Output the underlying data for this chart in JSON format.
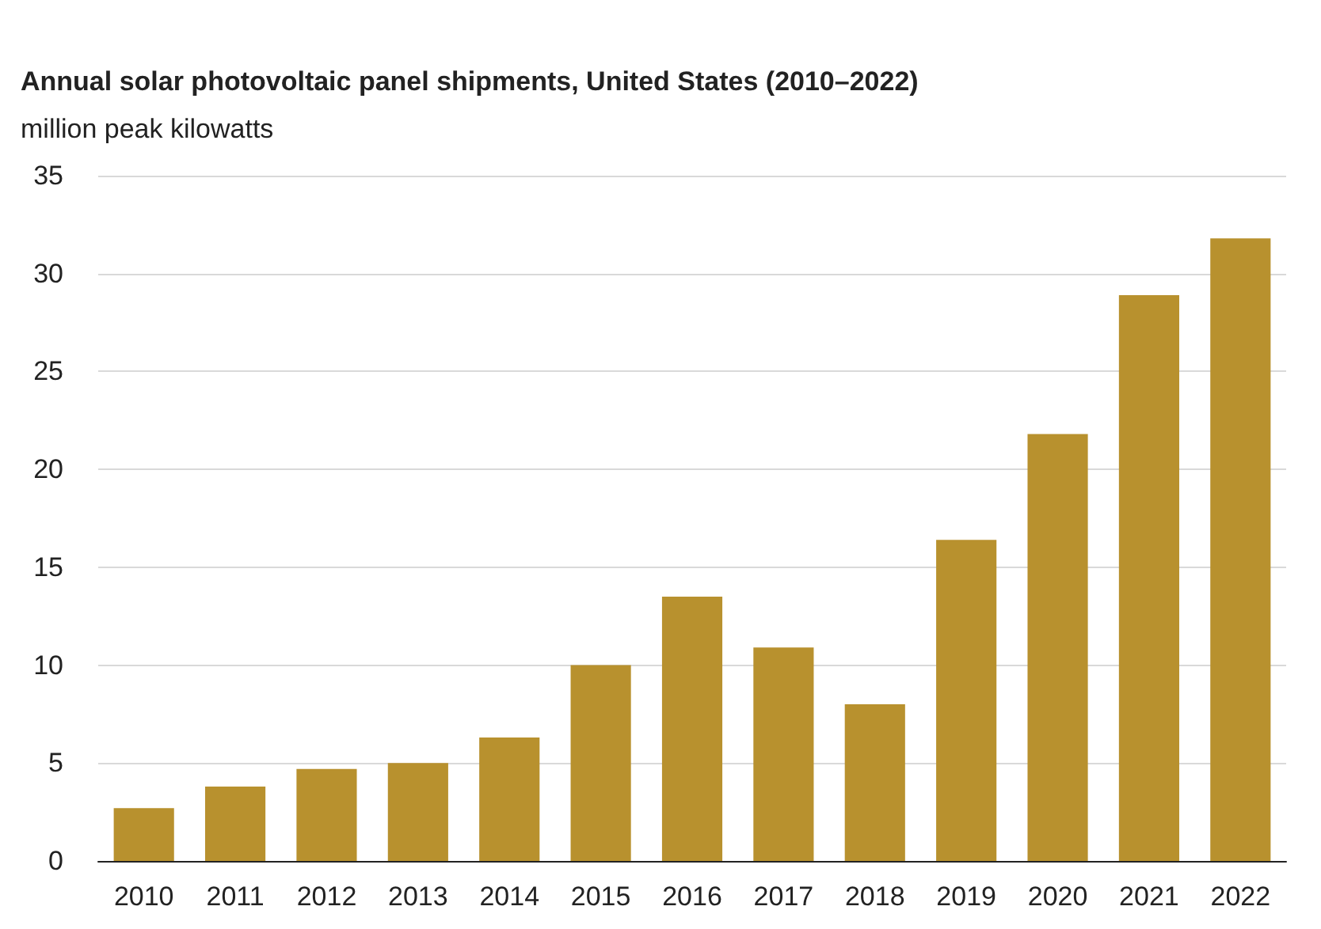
{
  "chart_data": {
    "type": "bar",
    "title": "Annual solar photovoltaic panel shipments, United States (2010–2022)",
    "ylabel": "million peak kilowatts",
    "categories": [
      "2010",
      "2011",
      "2012",
      "2013",
      "2014",
      "2015",
      "2016",
      "2017",
      "2018",
      "2019",
      "2020",
      "2021",
      "2022"
    ],
    "values": [
      2.7,
      3.8,
      4.7,
      5.0,
      6.3,
      10.0,
      13.5,
      10.9,
      8.0,
      16.4,
      21.8,
      28.9,
      31.8
    ],
    "color": "#b8912e",
    "ylim": [
      0,
      35
    ],
    "yticks": [
      0,
      5,
      10,
      15,
      20,
      25,
      30,
      35
    ],
    "grid": "y"
  }
}
